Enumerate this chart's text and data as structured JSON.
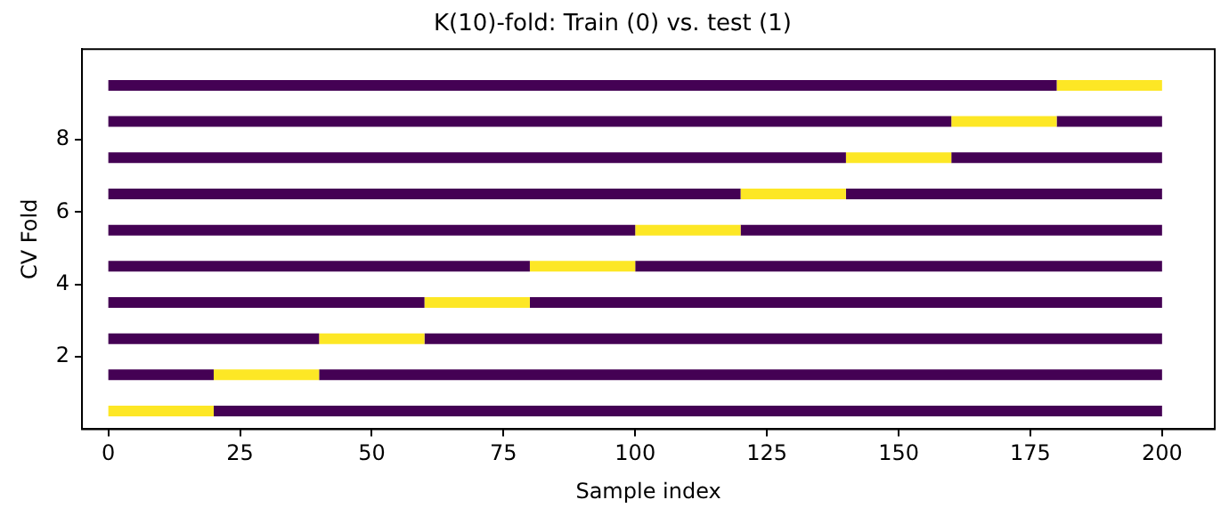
{
  "chart_data": {
    "type": "line",
    "title": "K(10)-fold: Train (0) vs. test (1)",
    "xlabel": "Sample index",
    "ylabel": "CV Fold",
    "xlim": [
      -5,
      210
    ],
    "xticks": [
      0,
      25,
      50,
      75,
      100,
      125,
      150,
      175,
      200
    ],
    "ylim": [
      0,
      10.5
    ],
    "yticks": [
      2,
      4,
      6,
      8
    ],
    "marker": "none",
    "line_style": "solid",
    "series": [
      {
        "color": "#fde725",
        "x": [
          0,
          20
        ],
        "values": [
          0.5,
          0.5
        ]
      },
      {
        "color": "#440154",
        "x": [
          20,
          200
        ],
        "values": [
          0.5,
          0.5
        ]
      },
      {
        "color": "#440154",
        "x": [
          0,
          20
        ],
        "values": [
          1.5,
          1.5
        ]
      },
      {
        "color": "#fde725",
        "x": [
          20,
          40
        ],
        "values": [
          1.5,
          1.5
        ]
      },
      {
        "color": "#440154",
        "x": [
          40,
          200
        ],
        "values": [
          1.5,
          1.5
        ]
      },
      {
        "color": "#440154",
        "x": [
          0,
          40
        ],
        "values": [
          2.5,
          2.5
        ]
      },
      {
        "color": "#fde725",
        "x": [
          40,
          60
        ],
        "values": [
          2.5,
          2.5
        ]
      },
      {
        "color": "#440154",
        "x": [
          60,
          200
        ],
        "values": [
          2.5,
          2.5
        ]
      },
      {
        "color": "#440154",
        "x": [
          0,
          60
        ],
        "values": [
          3.5,
          3.5
        ]
      },
      {
        "color": "#fde725",
        "x": [
          60,
          80
        ],
        "values": [
          3.5,
          3.5
        ]
      },
      {
        "color": "#440154",
        "x": [
          80,
          200
        ],
        "values": [
          3.5,
          3.5
        ]
      },
      {
        "color": "#440154",
        "x": [
          0,
          80
        ],
        "values": [
          4.5,
          4.5
        ]
      },
      {
        "color": "#fde725",
        "x": [
          80,
          100
        ],
        "values": [
          4.5,
          4.5
        ]
      },
      {
        "color": "#440154",
        "x": [
          100,
          200
        ],
        "values": [
          4.5,
          4.5
        ]
      },
      {
        "color": "#440154",
        "x": [
          0,
          100
        ],
        "values": [
          5.5,
          5.5
        ]
      },
      {
        "color": "#fde725",
        "x": [
          100,
          120
        ],
        "values": [
          5.5,
          5.5
        ]
      },
      {
        "color": "#440154",
        "x": [
          120,
          200
        ],
        "values": [
          5.5,
          5.5
        ]
      },
      {
        "color": "#440154",
        "x": [
          0,
          120
        ],
        "values": [
          6.5,
          6.5
        ]
      },
      {
        "color": "#fde725",
        "x": [
          120,
          140
        ],
        "values": [
          6.5,
          6.5
        ]
      },
      {
        "color": "#440154",
        "x": [
          140,
          200
        ],
        "values": [
          6.5,
          6.5
        ]
      },
      {
        "color": "#440154",
        "x": [
          0,
          140
        ],
        "values": [
          7.5,
          7.5
        ]
      },
      {
        "color": "#fde725",
        "x": [
          140,
          160
        ],
        "values": [
          7.5,
          7.5
        ]
      },
      {
        "color": "#440154",
        "x": [
          160,
          200
        ],
        "values": [
          7.5,
          7.5
        ]
      },
      {
        "color": "#440154",
        "x": [
          0,
          160
        ],
        "values": [
          8.5,
          8.5
        ]
      },
      {
        "color": "#fde725",
        "x": [
          160,
          180
        ],
        "values": [
          8.5,
          8.5
        ]
      },
      {
        "color": "#440154",
        "x": [
          180,
          200
        ],
        "values": [
          8.5,
          8.5
        ]
      },
      {
        "color": "#440154",
        "x": [
          0,
          180
        ],
        "values": [
          9.5,
          9.5
        ]
      },
      {
        "color": "#fde725",
        "x": [
          180,
          200
        ],
        "values": [
          9.5,
          9.5
        ]
      }
    ]
  }
}
